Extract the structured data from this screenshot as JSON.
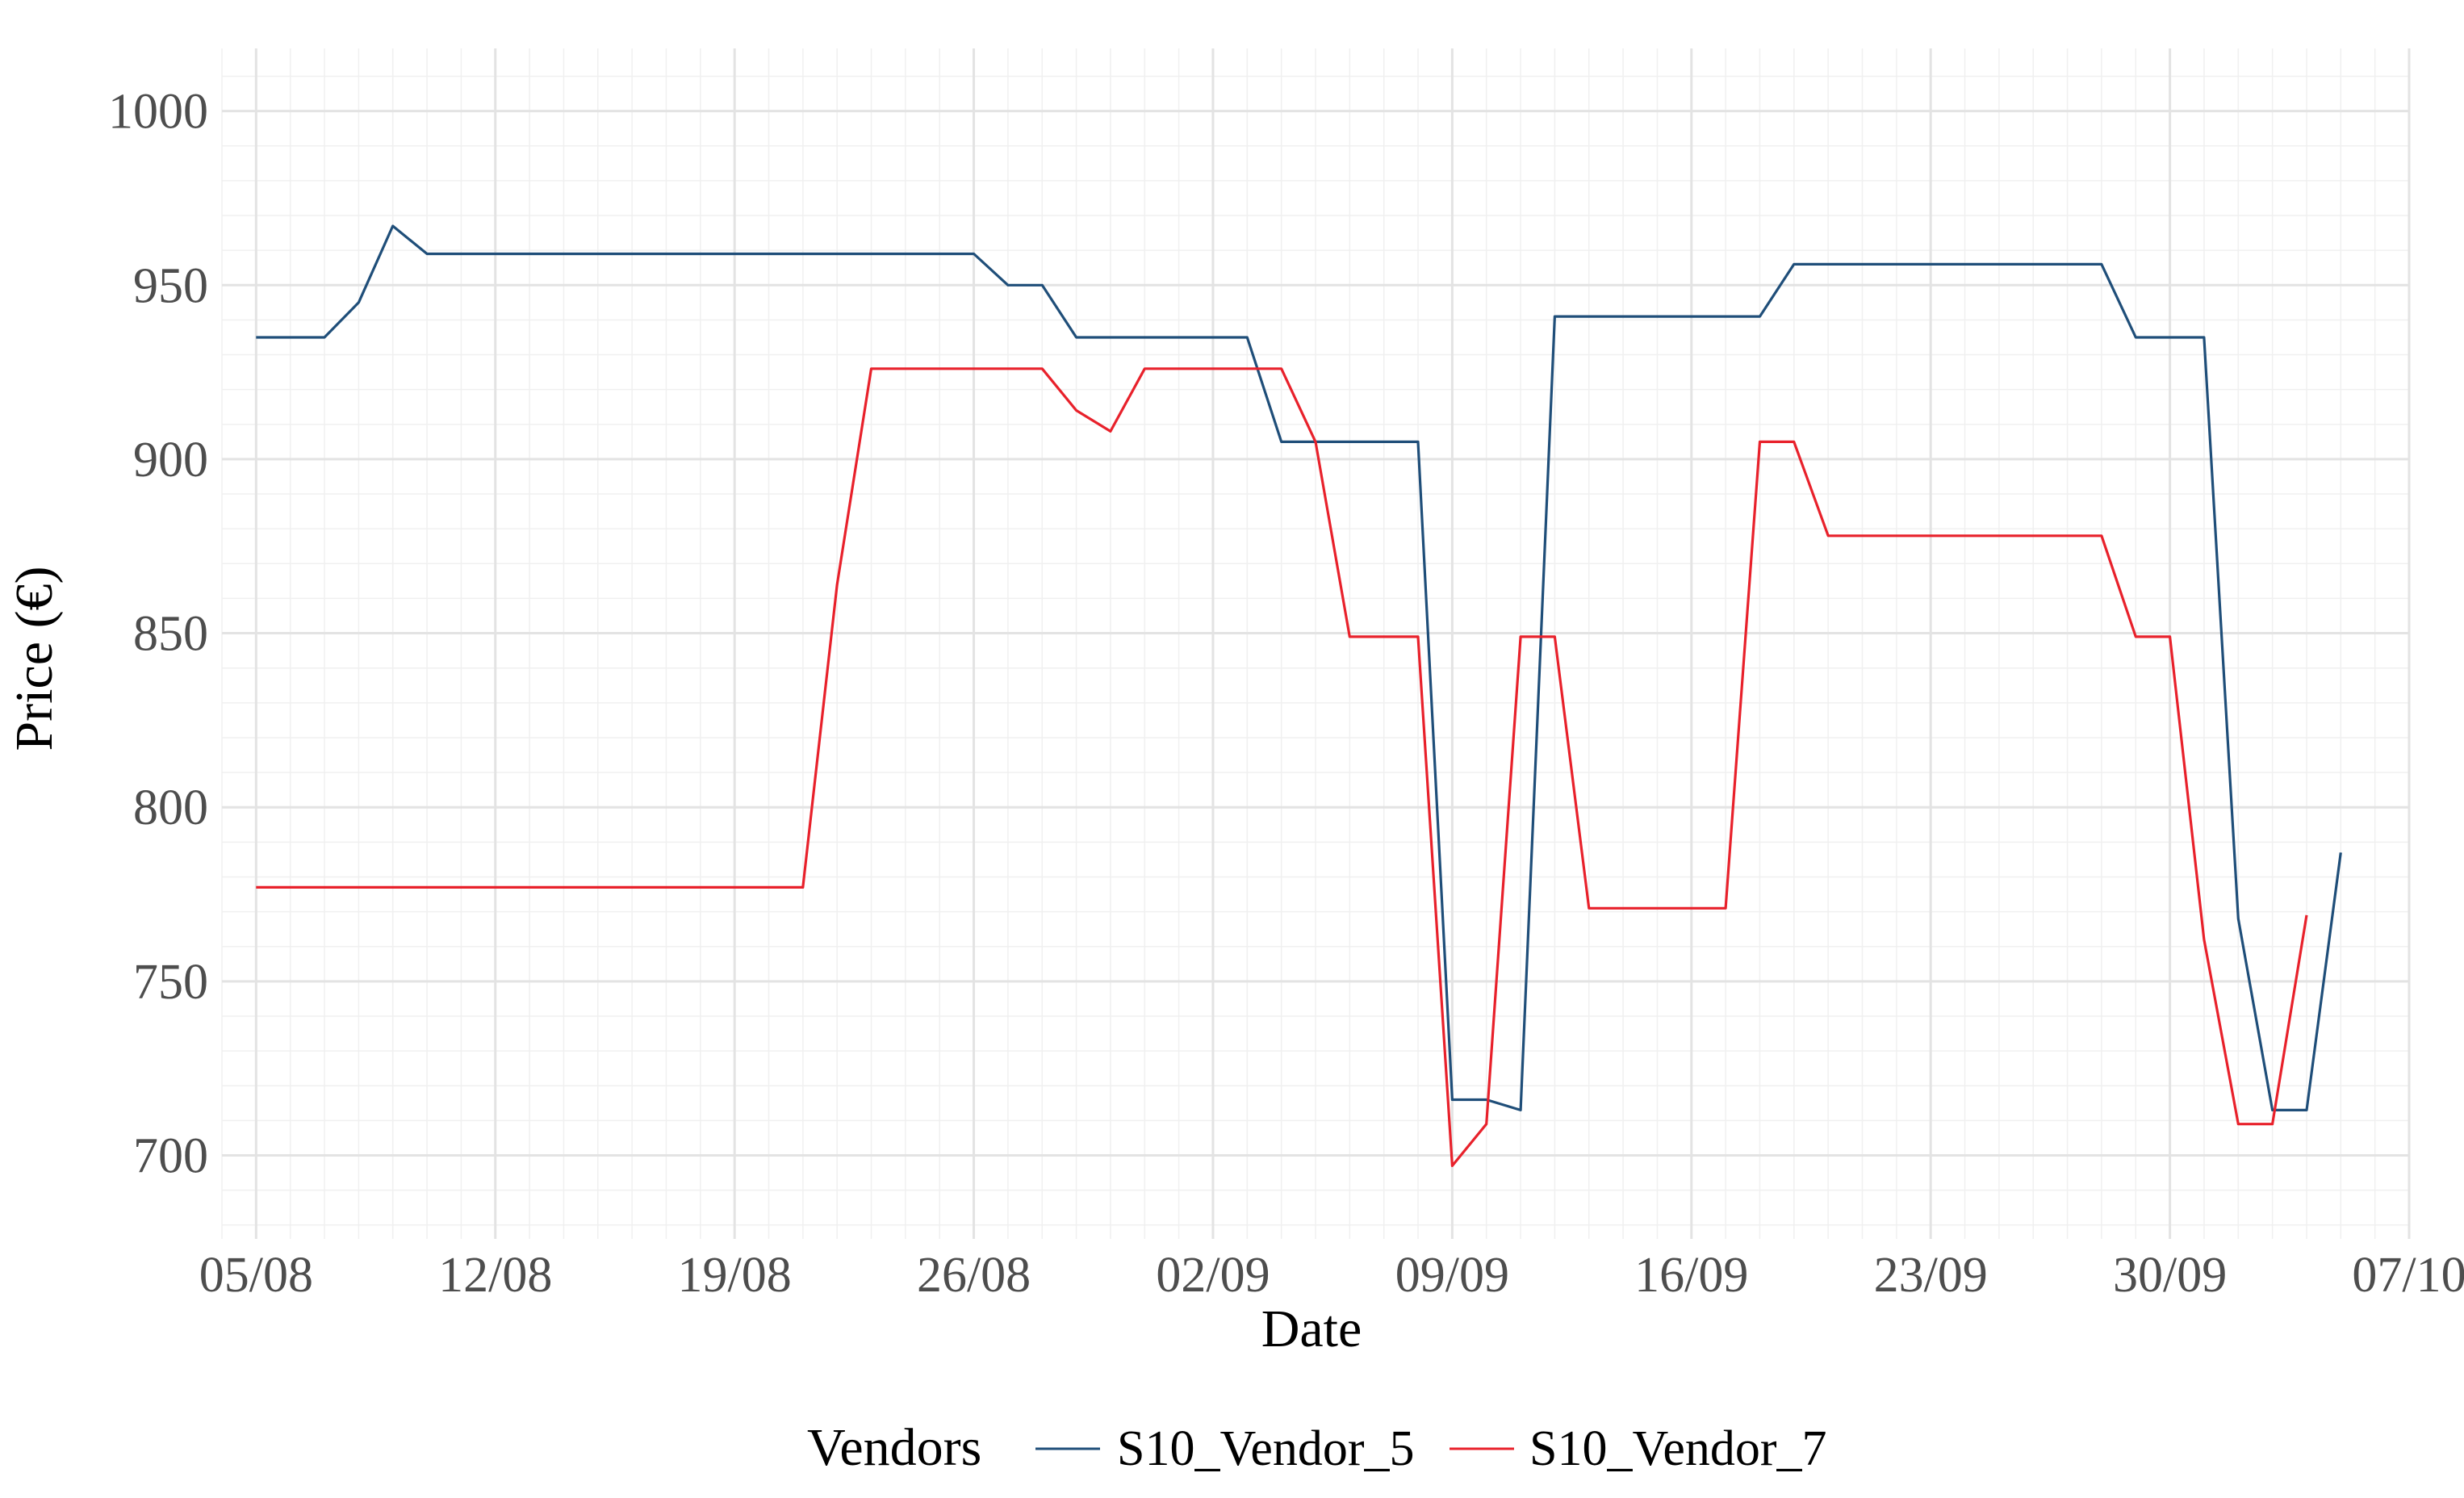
{
  "chart_data": {
    "type": "line",
    "xlabel": "Date",
    "ylabel": "Price (€)",
    "ylim": [
      676,
      1018
    ],
    "xlim": [
      "2023-08-04",
      "2023-10-07"
    ],
    "grid": true,
    "legend_position": "bottom",
    "legend_title": "Vendors",
    "y_ticks": [
      700,
      750,
      800,
      850,
      900,
      950,
      1000
    ],
    "x_ticks": [
      {
        "date": "2023-08-05",
        "label": "05/08"
      },
      {
        "date": "2023-08-12",
        "label": "12/08"
      },
      {
        "date": "2023-08-19",
        "label": "19/08"
      },
      {
        "date": "2023-08-26",
        "label": "26/08"
      },
      {
        "date": "2023-09-02",
        "label": "02/09"
      },
      {
        "date": "2023-09-09",
        "label": "09/09"
      },
      {
        "date": "2023-09-16",
        "label": "16/09"
      },
      {
        "date": "2023-09-23",
        "label": "23/09"
      },
      {
        "date": "2023-09-30",
        "label": "30/09"
      },
      {
        "date": "2023-10-07",
        "label": "07/10"
      }
    ],
    "series": [
      {
        "name": "S10_Vendor_5",
        "color": "#1f4e79",
        "points": [
          [
            "2023-08-05",
            935
          ],
          [
            "2023-08-07",
            935
          ],
          [
            "2023-08-08",
            945
          ],
          [
            "2023-08-09",
            967
          ],
          [
            "2023-08-10",
            959
          ],
          [
            "2023-08-26",
            959
          ],
          [
            "2023-08-27",
            950
          ],
          [
            "2023-08-28",
            950
          ],
          [
            "2023-08-29",
            935
          ],
          [
            "2023-09-03",
            935
          ],
          [
            "2023-09-04",
            905
          ],
          [
            "2023-09-08",
            905
          ],
          [
            "2023-09-09",
            716
          ],
          [
            "2023-09-10",
            716
          ],
          [
            "2023-09-11",
            713
          ],
          [
            "2023-09-12",
            941
          ],
          [
            "2023-09-18",
            941
          ],
          [
            "2023-09-19",
            956
          ],
          [
            "2023-09-28",
            956
          ],
          [
            "2023-09-29",
            935
          ],
          [
            "2023-09-30",
            935
          ],
          [
            "2023-10-01",
            935
          ],
          [
            "2023-10-02",
            768
          ],
          [
            "2023-10-03",
            713
          ],
          [
            "2023-10-04",
            713
          ],
          [
            "2023-10-05",
            787
          ]
        ]
      },
      {
        "name": "S10_Vendor_7",
        "color": "#e8212b",
        "points": [
          [
            "2023-08-05",
            777
          ],
          [
            "2023-08-21",
            777
          ],
          [
            "2023-08-22",
            864
          ],
          [
            "2023-08-23",
            926
          ],
          [
            "2023-08-28",
            926
          ],
          [
            "2023-08-29",
            914
          ],
          [
            "2023-08-30",
            908
          ],
          [
            "2023-08-31",
            926
          ],
          [
            "2023-09-04",
            926
          ],
          [
            "2023-09-05",
            905
          ],
          [
            "2023-09-06",
            849
          ],
          [
            "2023-09-08",
            849
          ],
          [
            "2023-09-09",
            697
          ],
          [
            "2023-09-10",
            709
          ],
          [
            "2023-09-11",
            849
          ],
          [
            "2023-09-12",
            849
          ],
          [
            "2023-09-13",
            771
          ],
          [
            "2023-09-17",
            771
          ],
          [
            "2023-09-18",
            905
          ],
          [
            "2023-09-19",
            905
          ],
          [
            "2023-09-20",
            878
          ],
          [
            "2023-09-28",
            878
          ],
          [
            "2023-09-29",
            849
          ],
          [
            "2023-09-30",
            849
          ],
          [
            "2023-10-01",
            762
          ],
          [
            "2023-10-02",
            709
          ],
          [
            "2023-10-03",
            709
          ],
          [
            "2023-10-04",
            769
          ]
        ]
      }
    ]
  }
}
